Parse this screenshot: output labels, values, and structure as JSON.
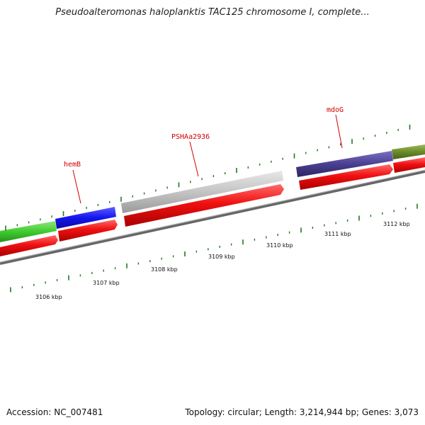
{
  "title": "Pseudoalteromonas haloplanktis TAC125 chromosome I, complete...",
  "footer": {
    "accession": "Accession: NC_007481",
    "summary": "Topology: circular; Length: 3,214,944 bp; Genes: 3,073"
  },
  "gene_labels": [
    {
      "text": "hemB"
    },
    {
      "text": "PSHAa2936"
    },
    {
      "text": "mdoG"
    }
  ],
  "scale_labels": [
    "3106 kbp",
    "3107 kbp",
    "3108 kbp",
    "3109 kbp",
    "3110 kbp",
    "3111 kbp",
    "3112 kbp"
  ],
  "colors": {
    "strand_red": "#ee1111",
    "gene_green": "#44cc33",
    "gene_blue": "#1111ee",
    "gene_gray": "#c4c4c4",
    "gene_purple": "#4a3f91",
    "gene_olive": "#6b8a2a",
    "backbone": "#777777",
    "ticks": "#1f7a1f",
    "label_red": "#d10000"
  }
}
